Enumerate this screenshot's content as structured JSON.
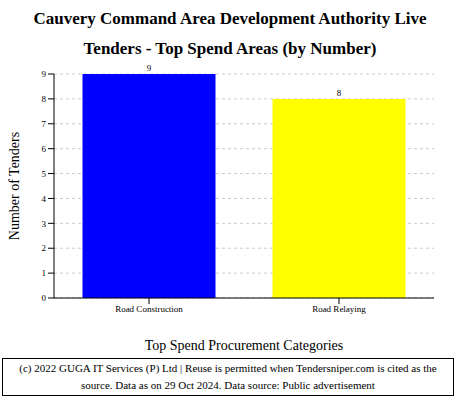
{
  "chart_data": {
    "type": "bar",
    "title": "Cauvery Command Area Development Authority Live Tenders - Top Spend Areas (by Number)",
    "x_label": "Top Spend Procurement Categories",
    "y_label": "Number of Tenders",
    "categories": [
      "Road Construction",
      "Road Relaying"
    ],
    "values": [
      9,
      8
    ],
    "colors": [
      "#0000ff",
      "#ffff00"
    ],
    "ylim": [
      0,
      9
    ],
    "yticks": [
      0,
      1,
      2,
      3,
      4,
      5,
      6,
      7,
      8,
      9
    ],
    "grid": true,
    "data_labels": true,
    "footer": "(c) 2022 GUGA IT Services (P) Ltd | Reuse is permitted when Tendersniper.com is cited as the source. Data as on 29 Oct 2024. Data source: Public advertisement"
  }
}
